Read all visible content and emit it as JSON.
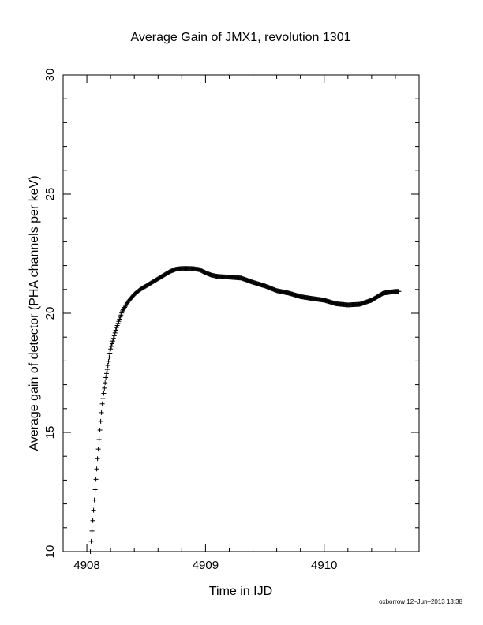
{
  "chart_data": {
    "type": "scatter",
    "title": "Average Gain of JMX1, revolution 1301",
    "xlabel": "Time in IJD",
    "ylabel": "Average gain of detector (PHA channels per keV)",
    "xlim": [
      4907.8,
      4910.8
    ],
    "ylim": [
      10,
      30
    ],
    "x_ticks": [
      "4908",
      "4909",
      "4910"
    ],
    "x_tick_values": [
      4908,
      4909,
      4910
    ],
    "y_ticks": [
      "10",
      "15",
      "20",
      "25",
      "30"
    ],
    "y_tick_values": [
      10,
      15,
      20,
      25,
      30
    ],
    "grid": false,
    "marker": "plus",
    "color": "#000000",
    "series": [
      {
        "x": [
          4908.03,
          4908.05,
          4908.07,
          4908.09,
          4908.11,
          4908.13,
          4908.16,
          4908.2,
          4908.25,
          4908.3,
          4908.35,
          4908.4,
          4908.45,
          4908.5,
          4908.55,
          4908.6,
          4908.65,
          4908.7,
          4908.75,
          4908.8,
          4908.85,
          4908.9,
          4908.95,
          4909.0,
          4909.05,
          4909.1,
          4909.15,
          4909.2,
          4909.3,
          4909.4,
          4909.5,
          4909.6,
          4909.7,
          4909.8,
          4909.9,
          4910.0,
          4910.1,
          4910.2,
          4910.3,
          4910.4,
          4910.5,
          4910.6,
          4910.63
        ],
        "y": [
          10.0,
          11.3,
          12.6,
          13.9,
          15.1,
          16.2,
          17.3,
          18.5,
          19.4,
          20.1,
          20.5,
          20.8,
          21.0,
          21.15,
          21.3,
          21.45,
          21.6,
          21.75,
          21.85,
          21.88,
          21.88,
          21.87,
          21.83,
          21.7,
          21.6,
          21.55,
          21.53,
          21.52,
          21.48,
          21.3,
          21.15,
          20.95,
          20.85,
          20.7,
          20.62,
          20.55,
          20.4,
          20.35,
          20.38,
          20.55,
          20.85,
          20.92,
          20.92
        ]
      }
    ]
  },
  "footer": "oxborrow 12–Jun–2013 13:38"
}
